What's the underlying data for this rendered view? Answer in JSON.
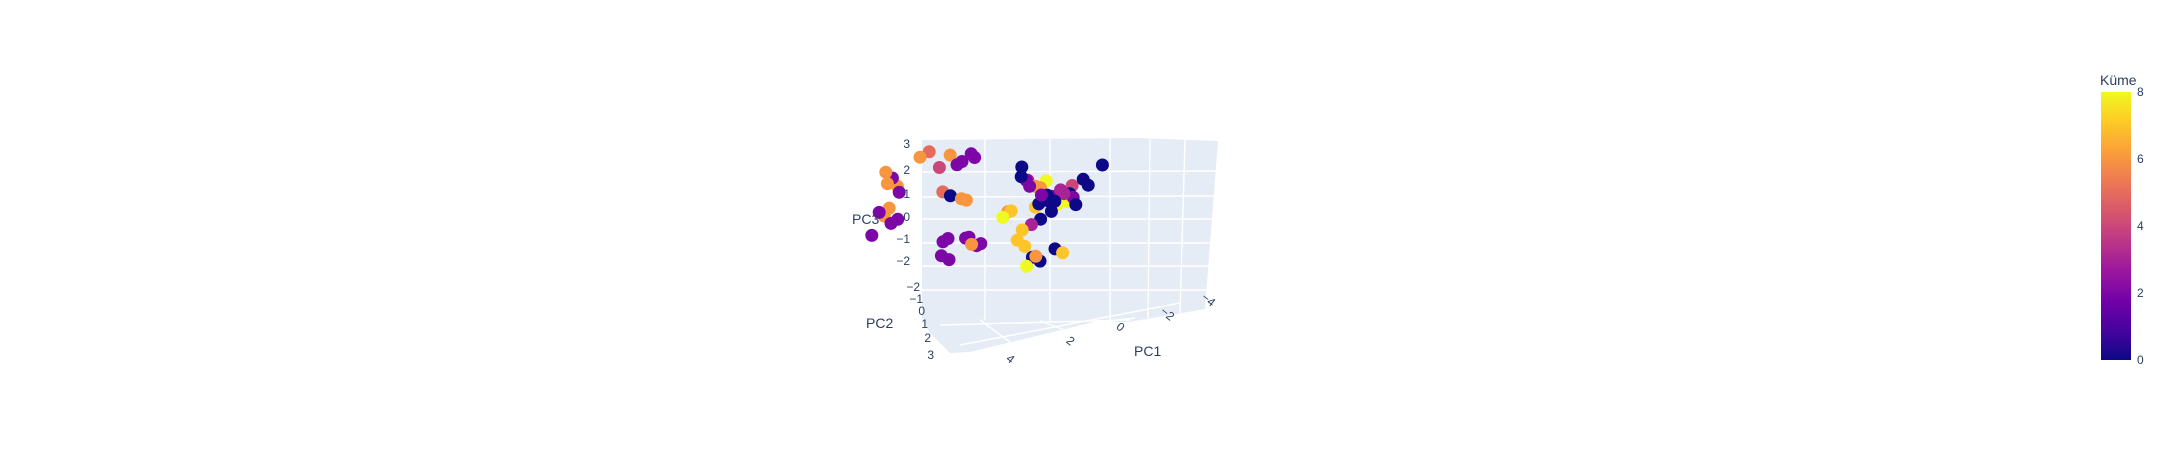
{
  "chart_data": {
    "type": "scatter3d",
    "axes": {
      "x": {
        "label": "PC1",
        "ticks": [
          "4",
          "2",
          "0",
          "−2",
          "−4"
        ]
      },
      "y": {
        "label": "PC2",
        "ticks": [
          "−2",
          "−1",
          "0",
          "1",
          "2",
          "3"
        ]
      },
      "z": {
        "label": "PC3",
        "ticks": [
          "−2",
          "−1",
          "0",
          "1",
          "2",
          "3"
        ]
      }
    },
    "colorbar": {
      "title": "Küme",
      "ticks": [
        "0",
        "2",
        "4",
        "6",
        "8"
      ],
      "range": [
        0,
        8
      ],
      "colorscale": [
        "#0d0887",
        "#46039f",
        "#7201a8",
        "#9c179e",
        "#bd3786",
        "#d8576b",
        "#ed7953",
        "#fb9f3a",
        "#fdca26",
        "#f0f921"
      ]
    },
    "points": [
      {
        "x": 4.1,
        "y": -0.5,
        "z": -1.2,
        "c": 2
      },
      {
        "x": 3.8,
        "y": -1.5,
        "z": 0.8,
        "c": 2
      },
      {
        "x": 3.9,
        "y": -1.4,
        "z": 0.6,
        "c": 6
      },
      {
        "x": 3.7,
        "y": -1.6,
        "z": 0.4,
        "c": 6
      },
      {
        "x": 3.6,
        "y": -1.3,
        "z": 0.3,
        "c": 2
      },
      {
        "x": 3.9,
        "y": -1.0,
        "z": -0.6,
        "c": 6
      },
      {
        "x": 4.0,
        "y": -0.9,
        "z": -0.4,
        "c": 2
      },
      {
        "x": 3.8,
        "y": -1.1,
        "z": -0.3,
        "c": 6
      },
      {
        "x": 3.7,
        "y": -0.8,
        "z": -0.8,
        "c": 2
      },
      {
        "x": 3.5,
        "y": -0.6,
        "z": -0.5,
        "c": 2
      },
      {
        "x": 3.9,
        "y": -1.2,
        "z": 1.2,
        "c": 6
      },
      {
        "x": 3.2,
        "y": -1.8,
        "z": 1.6,
        "c": 6
      },
      {
        "x": 3.0,
        "y": -1.9,
        "z": 1.8,
        "c": 5
      },
      {
        "x": 2.7,
        "y": -1.6,
        "z": 1.3,
        "c": 4
      },
      {
        "x": 2.5,
        "y": -1.9,
        "z": 1.7,
        "c": 6
      },
      {
        "x": 2.2,
        "y": -1.8,
        "z": 1.5,
        "c": 2
      },
      {
        "x": 2.3,
        "y": -1.7,
        "z": 1.4,
        "c": 2
      },
      {
        "x": 2.0,
        "y": -1.9,
        "z": 1.8,
        "c": 2
      },
      {
        "x": 1.9,
        "y": -1.8,
        "z": 1.7,
        "c": 2
      },
      {
        "x": 2.4,
        "y": -1.4,
        "z": 0.2,
        "c": 0
      },
      {
        "x": 2.6,
        "y": -1.5,
        "z": 0.3,
        "c": 5
      },
      {
        "x": 2.0,
        "y": -1.3,
        "z": 0.1,
        "c": 6
      },
      {
        "x": 2.1,
        "y": -1.2,
        "z": 0.2,
        "c": 6
      },
      {
        "x": 2.5,
        "y": -1.0,
        "z": -1.6,
        "c": 2
      },
      {
        "x": 2.4,
        "y": -1.1,
        "z": -1.5,
        "c": 2
      },
      {
        "x": 2.0,
        "y": -1.2,
        "z": -1.5,
        "c": 2
      },
      {
        "x": 1.9,
        "y": -1.1,
        "z": -1.4,
        "c": 2
      },
      {
        "x": 1.8,
        "y": -0.9,
        "z": -1.6,
        "c": 6
      },
      {
        "x": 1.7,
        "y": -1.0,
        "z": -1.7,
        "c": 2
      },
      {
        "x": 2.5,
        "y": -0.8,
        "z": -2.1,
        "c": 2
      },
      {
        "x": 2.3,
        "y": -0.7,
        "z": -2.2,
        "c": 2
      },
      {
        "x": 1.6,
        "y": -1.0,
        "z": -1.6,
        "c": 2
      },
      {
        "x": 0.6,
        "y": -0.8,
        "z": 1.5,
        "c": 0
      },
      {
        "x": 0.5,
        "y": -0.9,
        "z": 1.3,
        "c": 2
      },
      {
        "x": 0.4,
        "y": -0.8,
        "z": 1.1,
        "c": 2
      },
      {
        "x": 0.3,
        "y": -1.0,
        "z": 1.0,
        "c": 6
      },
      {
        "x": 0.2,
        "y": -1.1,
        "z": 0.9,
        "c": 6
      },
      {
        "x": 0.1,
        "y": -0.7,
        "z": 0.8,
        "c": 2
      },
      {
        "x": 0.0,
        "y": -0.9,
        "z": 0.7,
        "c": 0
      },
      {
        "x": -0.1,
        "y": -1.0,
        "z": 0.6,
        "c": 2
      },
      {
        "x": -0.2,
        "y": -0.8,
        "z": 0.5,
        "c": 0
      },
      {
        "x": -0.3,
        "y": -1.0,
        "z": 0.9,
        "c": 3
      },
      {
        "x": -0.4,
        "y": -0.9,
        "z": 0.8,
        "c": 3
      },
      {
        "x": -0.5,
        "y": -1.1,
        "z": 0.7,
        "c": 0
      },
      {
        "x": -0.6,
        "y": -1.0,
        "z": 0.6,
        "c": 2
      },
      {
        "x": -0.7,
        "y": -0.8,
        "z": 0.4,
        "c": 0
      },
      {
        "x": -0.4,
        "y": -1.2,
        "z": 0.3,
        "c": 8
      },
      {
        "x": -0.2,
        "y": -1.1,
        "z": 0.2,
        "c": 8
      },
      {
        "x": 0.0,
        "y": -1.0,
        "z": 0.4,
        "c": 0
      },
      {
        "x": 0.2,
        "y": -0.9,
        "z": 0.3,
        "c": 0
      },
      {
        "x": -0.8,
        "y": -1.2,
        "z": 1.3,
        "c": 0
      },
      {
        "x": -0.9,
        "y": -1.3,
        "z": 1.0,
        "c": 0
      },
      {
        "x": -1.2,
        "y": -1.5,
        "z": 1.8,
        "c": 0
      },
      {
        "x": -0.5,
        "y": -1.4,
        "z": 0.9,
        "c": 4
      },
      {
        "x": -0.3,
        "y": -1.3,
        "z": 0.6,
        "c": 2
      },
      {
        "x": 0.1,
        "y": -1.2,
        "z": 0.5,
        "c": 7
      },
      {
        "x": 0.3,
        "y": -1.0,
        "z": 0.1,
        "c": 7
      },
      {
        "x": 0.1,
        "y": -0.6,
        "z": -0.2,
        "c": 0
      },
      {
        "x": 0.3,
        "y": -0.5,
        "z": -0.4,
        "c": 3
      },
      {
        "x": 0.5,
        "y": -0.4,
        "z": -0.6,
        "c": 7
      },
      {
        "x": 0.6,
        "y": -0.3,
        "z": -1.0,
        "c": 7
      },
      {
        "x": 0.4,
        "y": -0.2,
        "z": -1.2,
        "c": 7
      },
      {
        "x": 0.2,
        "y": -0.1,
        "z": -1.6,
        "c": 0
      },
      {
        "x": 0.0,
        "y": 0.0,
        "z": -1.7,
        "c": 0
      },
      {
        "x": 0.3,
        "y": 0.1,
        "z": -1.9,
        "c": 8
      },
      {
        "x": 0.1,
        "y": 0.0,
        "z": -1.5,
        "c": 6
      },
      {
        "x": -0.3,
        "y": -0.3,
        "z": -1.3,
        "c": 0
      },
      {
        "x": -0.5,
        "y": -0.2,
        "z": -1.4,
        "c": 7
      },
      {
        "x": 0.8,
        "y": -0.6,
        "z": 0.1,
        "c": 7
      },
      {
        "x": 0.9,
        "y": -0.7,
        "z": 0.0,
        "c": 6
      },
      {
        "x": 1.0,
        "y": -0.6,
        "z": -0.2,
        "c": 8
      },
      {
        "x": -0.1,
        "y": -0.9,
        "z": 0.0,
        "c": 0
      },
      {
        "x": 0.7,
        "y": -1.4,
        "z": 1.6,
        "c": 0
      },
      {
        "x": 0.5,
        "y": -1.1,
        "z": 1.2,
        "c": 3
      },
      {
        "x": 0.1,
        "y": -1.3,
        "z": 1.1,
        "c": 8
      }
    ]
  }
}
